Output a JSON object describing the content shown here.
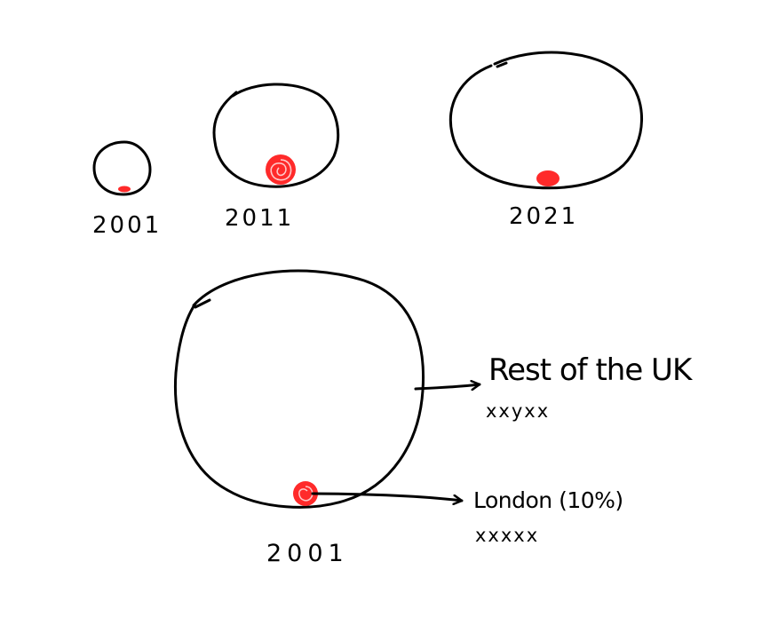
{
  "colors": {
    "ink": "#000000",
    "marker": "#ff2a2a",
    "background": "#ffffff"
  },
  "small_multiples": [
    {
      "year": "2001"
    },
    {
      "year": "2011"
    },
    {
      "year": "2021"
    }
  ],
  "detail": {
    "year": "2001",
    "rest_label": "Rest of the UK",
    "rest_value": "xxyxx",
    "london_label": "London (10%)",
    "london_value": "xxxxx"
  }
}
